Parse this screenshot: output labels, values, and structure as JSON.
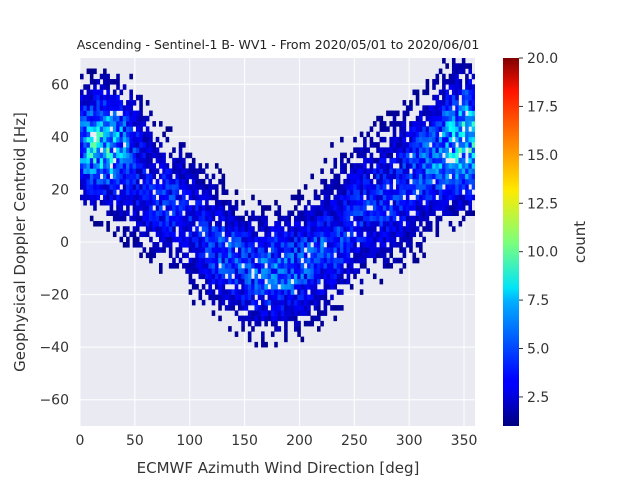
{
  "chart_data": {
    "type": "heatmap",
    "title": "Ascending - Sentinel-1 B- WV1 - From 2020/05/01 to 2020/06/01",
    "xlabel": "ECMWF Azimuth Wind Direction [deg]",
    "ylabel": "Geophysical Doppler Centroid [Hz]",
    "xlim": [
      0,
      360
    ],
    "ylim": [
      -70,
      70
    ],
    "xticks": [
      "0",
      "50",
      "100",
      "150",
      "200",
      "250",
      "300",
      "350"
    ],
    "yticks": [
      "60",
      "40",
      "20",
      "0",
      "−20",
      "−40",
      "−60"
    ],
    "xtick_values": [
      0,
      50,
      100,
      150,
      200,
      250,
      300,
      350
    ],
    "ytick_values": [
      60,
      40,
      20,
      0,
      -20,
      -40,
      -60
    ],
    "grid": true,
    "bins": {
      "x_width_deg": 3,
      "y_height_hz": 2
    },
    "colorbar": {
      "label": "count",
      "range": [
        1,
        20
      ],
      "ticks": [
        "2.5",
        "5.0",
        "7.5",
        "10.0",
        "12.5",
        "15.0",
        "17.5",
        "20.0"
      ],
      "tick_values": [
        2.5,
        5.0,
        7.5,
        10.0,
        12.5,
        15.0,
        17.5,
        20.0
      ],
      "colormap": "jet"
    },
    "density_model": {
      "description": "Counts per bin approximated as a sum of density lobes along the V-shaped Doppler vs wind-direction curve",
      "components": [
        {
          "x_center": 20,
          "y_center": 37,
          "x_spread": 22,
          "y_spread": 12,
          "peak": 8
        },
        {
          "x_center": 355,
          "y_center": 40,
          "x_spread": 18,
          "y_spread": 14,
          "peak": 7
        },
        {
          "x_center": 175,
          "y_center": -12,
          "x_spread": 30,
          "y_spread": 12,
          "peak": 5
        },
        {
          "x_center": 80,
          "y_center": 15,
          "x_spread": 25,
          "y_spread": 12,
          "peak": 3.5
        },
        {
          "x_center": 270,
          "y_center": 15,
          "x_spread": 28,
          "y_spread": 14,
          "peak": 3.5
        },
        {
          "x_center": 320,
          "y_center": 32,
          "x_spread": 20,
          "y_spread": 12,
          "peak": 4
        },
        {
          "x_center": 125,
          "y_center": -2,
          "x_spread": 18,
          "y_spread": 10,
          "peak": 3
        },
        {
          "x_center": 225,
          "y_center": -2,
          "x_spread": 18,
          "y_spread": 10,
          "peak": 3
        }
      ]
    }
  },
  "colors": {
    "plot_background": "#eaeaf2",
    "grid": "#ffffff",
    "text": "#333333"
  }
}
